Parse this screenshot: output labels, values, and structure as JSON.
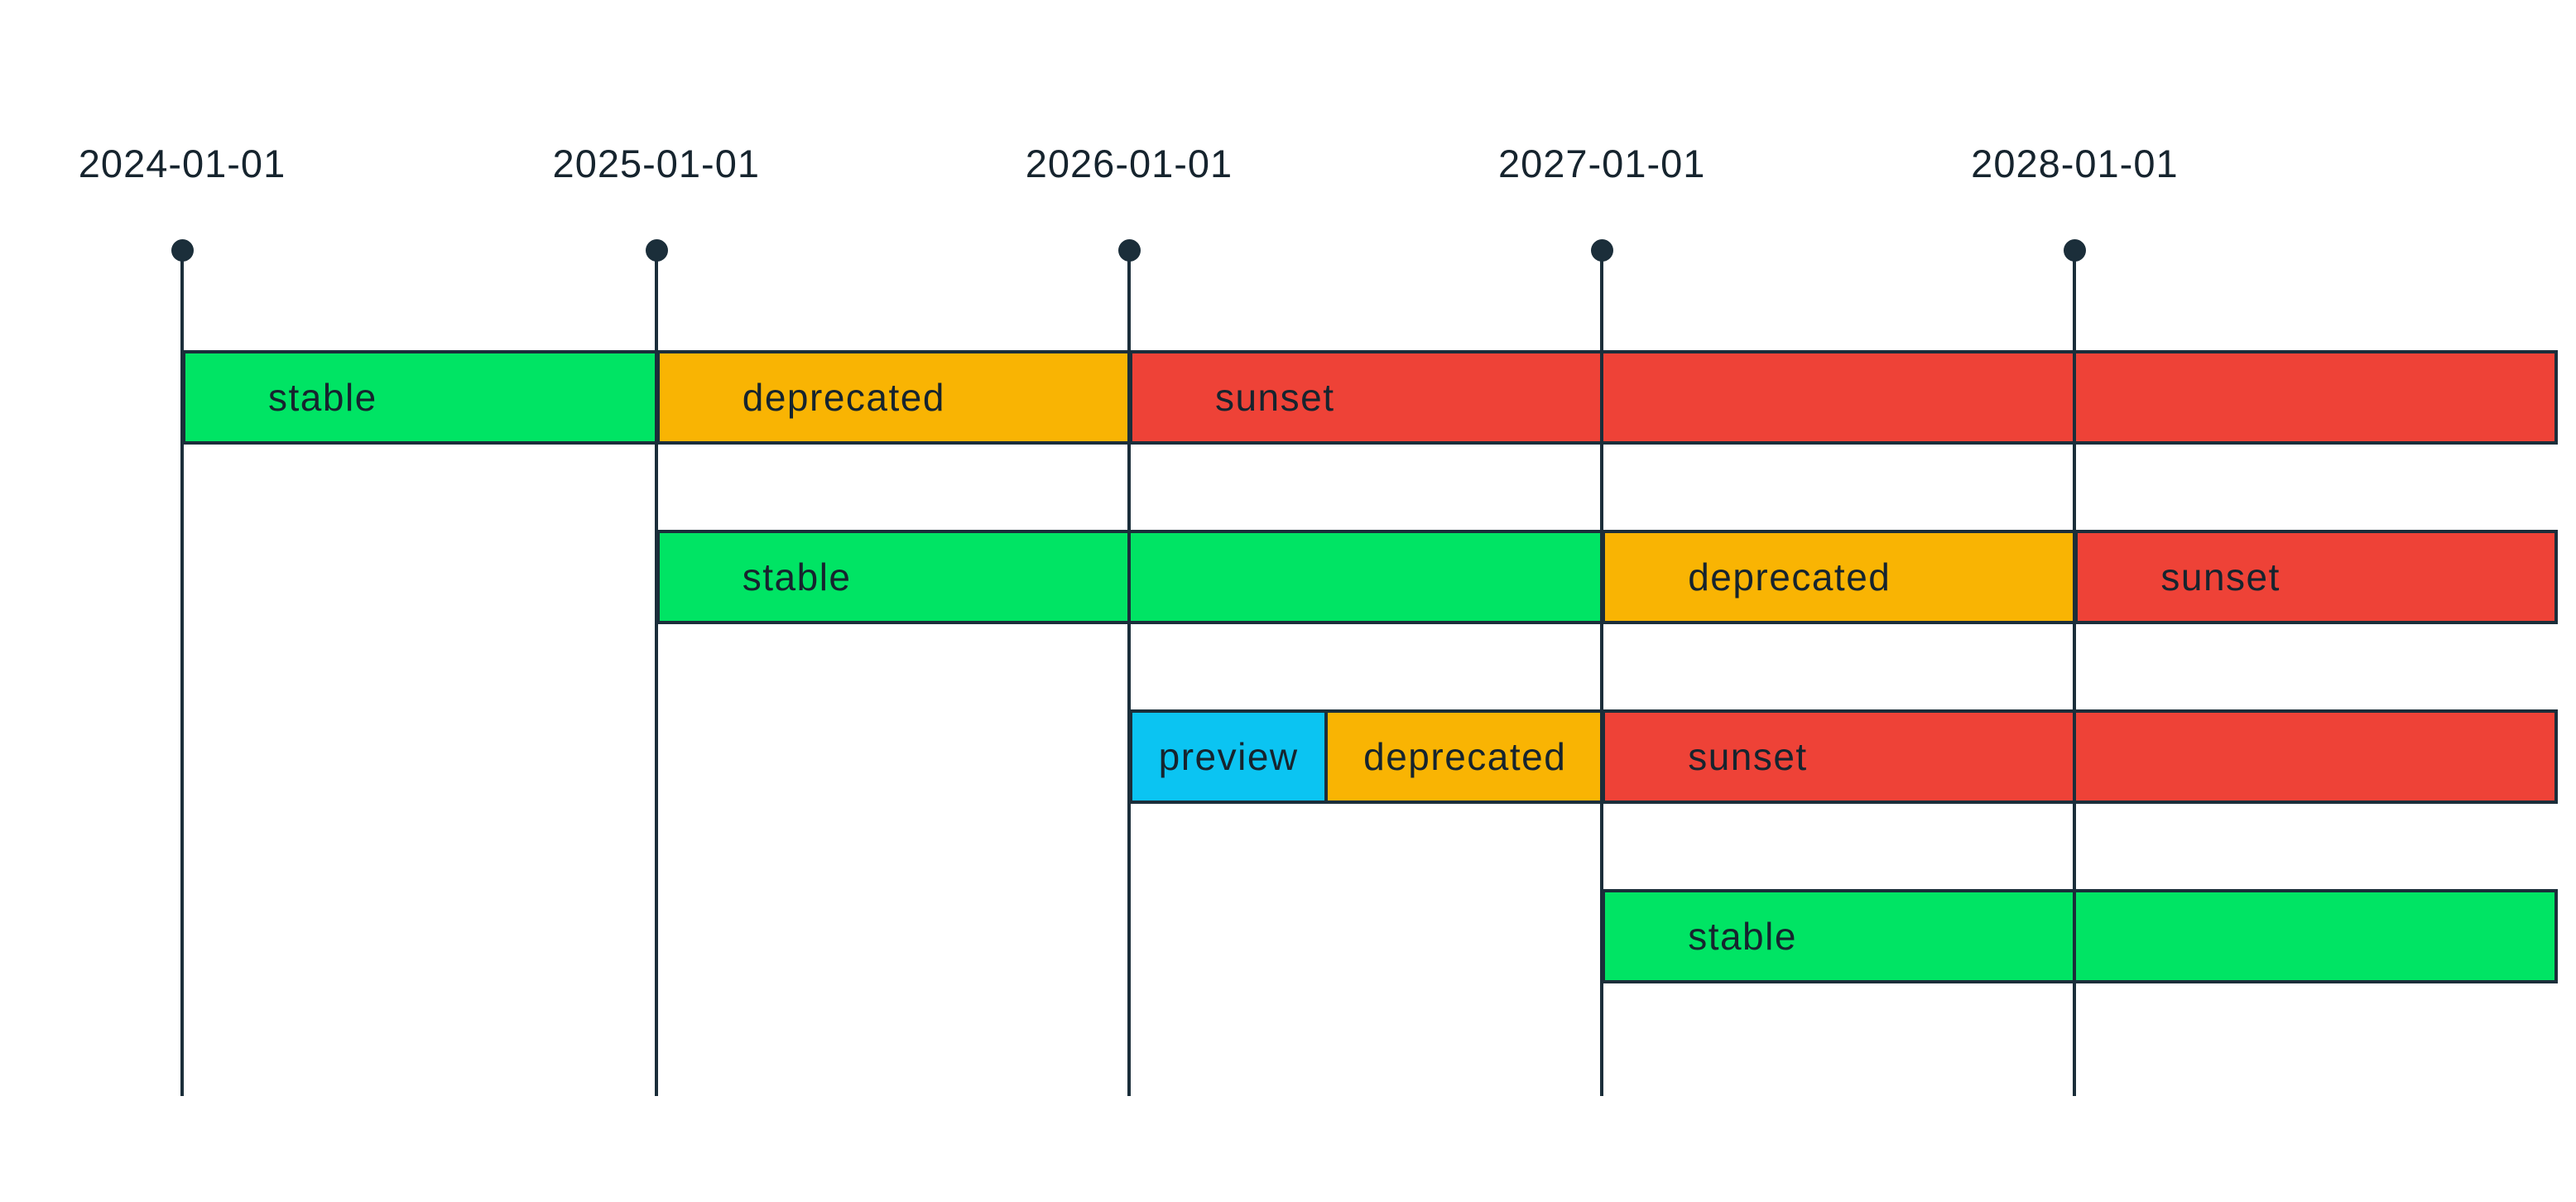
{
  "page": {
    "background": "#ffffff"
  },
  "chart_data": {
    "type": "bar",
    "subtype": "gantt-lifecycle-timeline",
    "title": "",
    "legend": null,
    "grid": "vertical dated lines with top dot markers, drawn over the bars",
    "x_axis": {
      "tick_labels": [
        "2024-01-01",
        "2025-01-01",
        "2026-01-01",
        "2027-01-01",
        "2028-01-01"
      ],
      "start": "2024-01-01",
      "bars_run_to_right_edge": true
    },
    "state_colors": {
      "stable": "#00e464",
      "preview": "#0bc4f2",
      "deprecated": "#f9b403",
      "sunset": "#ee4237"
    },
    "ink_color": "#1b2e3a",
    "rows": [
      {
        "segments": [
          {
            "label": "stable",
            "state": "stable",
            "start": "2024-01-01",
            "end": "2025-01-01"
          },
          {
            "label": "deprecated",
            "state": "deprecated",
            "start": "2025-01-01",
            "end": "2026-01-01"
          },
          {
            "label": "sunset",
            "state": "sunset",
            "start": "2026-01-01",
            "end": "chart-end"
          }
        ]
      },
      {
        "segments": [
          {
            "label": "stable",
            "state": "stable",
            "start": "2025-01-01",
            "end": "2027-01-01"
          },
          {
            "label": "deprecated",
            "state": "deprecated",
            "start": "2027-01-01",
            "end": "2028-01-01"
          },
          {
            "label": "sunset",
            "state": "sunset",
            "start": "2028-01-01",
            "end": "chart-end"
          }
        ]
      },
      {
        "segments": [
          {
            "label": "preview",
            "state": "preview",
            "start": "2026-01-01",
            "end": "2026-06-01"
          },
          {
            "label": "deprecated",
            "state": "deprecated",
            "start": "2026-06-01",
            "end": "2027-01-01"
          },
          {
            "label": "sunset",
            "state": "sunset",
            "start": "2027-01-01",
            "end": "chart-end"
          }
        ]
      },
      {
        "segments": [
          {
            "label": "stable",
            "state": "stable",
            "start": "2027-01-01",
            "end": "chart-end"
          }
        ]
      }
    ]
  }
}
